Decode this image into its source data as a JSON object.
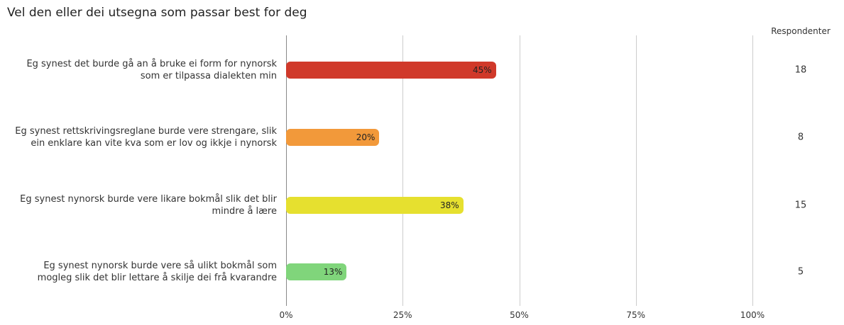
{
  "chart_data": {
    "type": "bar",
    "orientation": "horizontal",
    "title": "Vel den eller dei utsegna som passar best for deg",
    "categories": [
      "Eg synest det burde gå an å bruke ei form for nynorsk som er tilpassa dialekten min",
      "Eg synest rettskrivingsreglane burde vere strengare, slik ein enklare kan vite kva som er lov og ikkje i nynorsk",
      "Eg synest nynorsk burde vere likare bokmål slik det blir mindre å lære",
      "Eg synest nynorsk burde vere så ulikt bokmål som mogleg slik det blir lettare å skilje dei frå kvarandre"
    ],
    "values": [
      45,
      20,
      38,
      13
    ],
    "value_labels": [
      "45%",
      "20%",
      "38%",
      "13%"
    ],
    "colors": [
      "#d0392a",
      "#f2993a",
      "#e6e02f",
      "#80d57b"
    ],
    "xlim": [
      0,
      100
    ],
    "xticks": [
      {
        "value": 0,
        "label": "0%"
      },
      {
        "value": 25,
        "label": "25%"
      },
      {
        "value": 50,
        "label": "50%"
      },
      {
        "value": 75,
        "label": "75%"
      },
      {
        "value": 100,
        "label": "100%"
      }
    ],
    "grid": true,
    "respondents": {
      "label": "Respondenter",
      "values": [
        18,
        8,
        15,
        5
      ]
    }
  }
}
